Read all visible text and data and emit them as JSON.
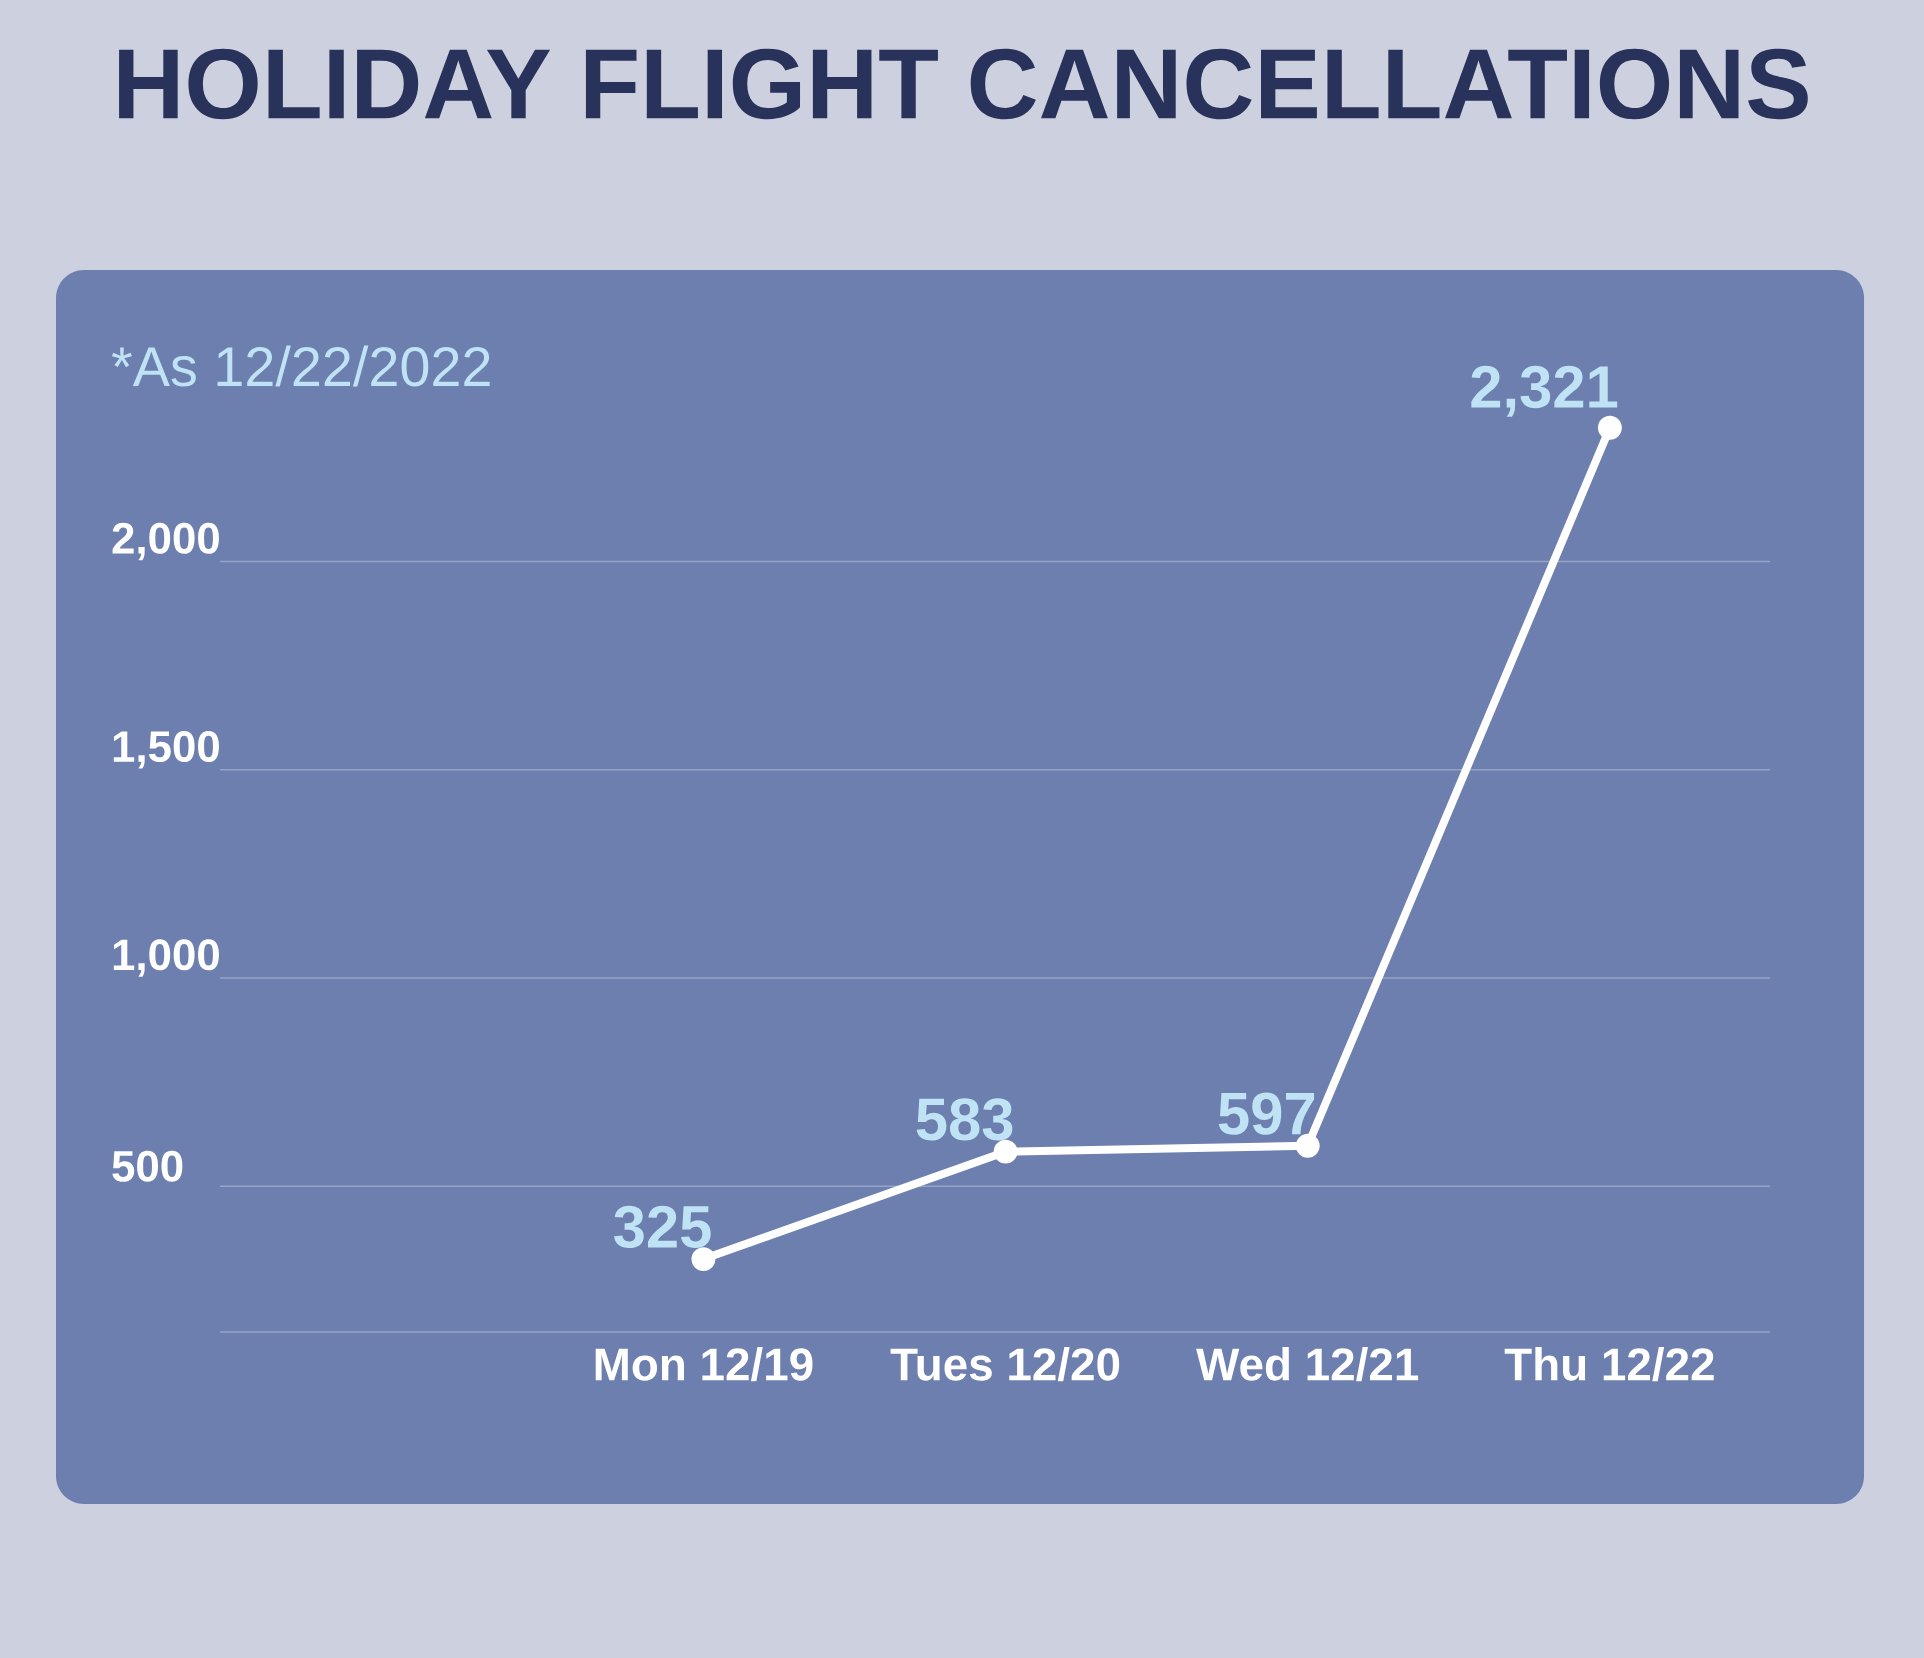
{
  "chart_data": {
    "type": "line",
    "title": "HOLIDAY FLIGHT CANCELLATIONS",
    "annotations": [
      "*As 12/22/2022"
    ],
    "categories": [
      "Mon 12/19",
      "Tues 12/20",
      "Wed 12/21",
      "Thu 12/22"
    ],
    "values": [
      325,
      583,
      597,
      2321
    ],
    "value_labels": [
      "325",
      "583",
      "597",
      "2,321"
    ],
    "color": "#ffffff",
    "marker": "circle",
    "line_style": "solid",
    "ylim": [
      150,
      2700
    ],
    "yticks": [
      500,
      {
        "value": 1000,
        "label": "1,000"
      },
      {
        "value": 1500,
        "label": "1,500"
      },
      {
        "value": 2000,
        "label": "2,000"
      }
    ],
    "grid": "y"
  }
}
